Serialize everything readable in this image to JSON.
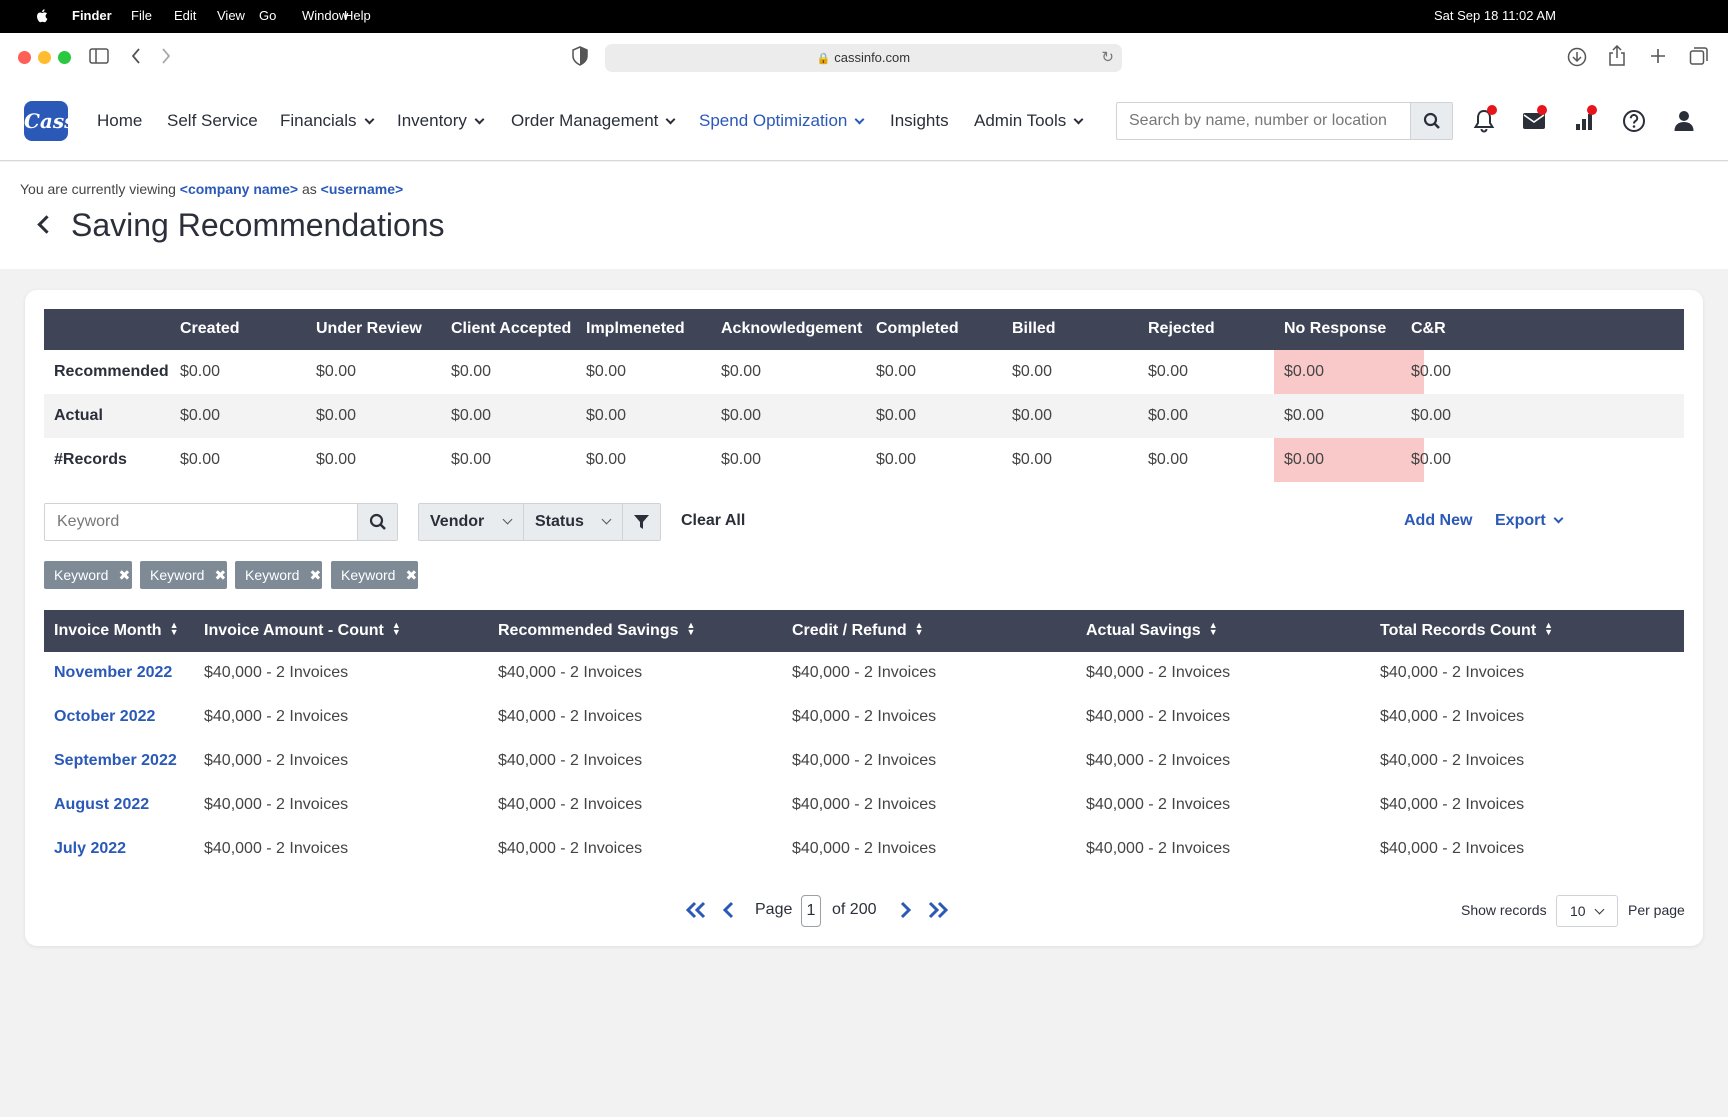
{
  "os_menu": {
    "app": "Finder",
    "items": [
      "File",
      "Edit",
      "View",
      "Go",
      "Window",
      "Help"
    ],
    "datetime": "Sat Sep 18  11:02 AM"
  },
  "browser": {
    "url": "cassinfo.com"
  },
  "nav": {
    "logo": "Cass",
    "items": [
      {
        "label": "Home",
        "dropdown": false
      },
      {
        "label": "Self Service",
        "dropdown": false
      },
      {
        "label": "Financials",
        "dropdown": true
      },
      {
        "label": "Inventory",
        "dropdown": true
      },
      {
        "label": "Order Management",
        "dropdown": true
      },
      {
        "label": "Spend Optimization",
        "dropdown": true,
        "active": true
      },
      {
        "label": "Insights",
        "dropdown": false
      },
      {
        "label": "Admin Tools",
        "dropdown": true
      }
    ],
    "search_placeholder": "Search by name, number or location"
  },
  "context": {
    "prefix": "You are currently viewing",
    "company": "<company name>",
    "as": "as",
    "user": "<username>"
  },
  "page_title": "Saving Recommendations",
  "summary": {
    "columns": [
      "Created",
      "Under Review",
      "Client Accepted",
      "Implmeneted",
      "Acknowledgement",
      "Completed",
      "Billed",
      "Rejected",
      "No Response",
      "C&R"
    ],
    "rows": [
      {
        "label": "Recommended",
        "values": [
          "$0.00",
          "$0.00",
          "$0.00",
          "$0.00",
          "$0.00",
          "$0.00",
          "$0.00",
          "$0.00",
          "$0.00",
          "$0.00"
        ]
      },
      {
        "label": "Actual",
        "values": [
          "$0.00",
          "$0.00",
          "$0.00",
          "$0.00",
          "$0.00",
          "$0.00",
          "$0.00",
          "$0.00",
          "$0.00",
          "$0.00"
        ]
      },
      {
        "label": "#Records",
        "values": [
          "$0.00",
          "$0.00",
          "$0.00",
          "$0.00",
          "$0.00",
          "$0.00",
          "$0.00",
          "$0.00",
          "$0.00",
          "$0.00"
        ]
      }
    ],
    "highlight_color": "#f9c9c9"
  },
  "filters": {
    "keyword_placeholder": "Keyword",
    "vendor": "Vendor",
    "status": "Status",
    "clear_all": "Clear All",
    "add_new": "Add New",
    "export": "Export",
    "chips": [
      "Keyword",
      "Keyword",
      "Keyword",
      "Keyword"
    ]
  },
  "table": {
    "columns": [
      "Invoice Month",
      "Invoice Amount - Count",
      "Recommended Savings",
      "Credit / Refund",
      "Actual Savings",
      "Total Records Count"
    ],
    "rows": [
      {
        "month": "November 2022",
        "cells": [
          "$40,000 - 2 Invoices",
          "$40,000 - 2 Invoices",
          "$40,000 - 2 Invoices",
          "$40,000 - 2 Invoices",
          "$40,000 - 2 Invoices"
        ]
      },
      {
        "month": "October 2022",
        "cells": [
          "$40,000 - 2 Invoices",
          "$40,000 - 2 Invoices",
          "$40,000 - 2 Invoices",
          "$40,000 - 2 Invoices",
          "$40,000 - 2 Invoices"
        ]
      },
      {
        "month": "September 2022",
        "cells": [
          "$40,000 - 2 Invoices",
          "$40,000 - 2 Invoices",
          "$40,000 - 2 Invoices",
          "$40,000 - 2 Invoices",
          "$40,000 - 2 Invoices"
        ]
      },
      {
        "month": "August 2022",
        "cells": [
          "$40,000 - 2 Invoices",
          "$40,000 - 2 Invoices",
          "$40,000 - 2 Invoices",
          "$40,000 - 2 Invoices",
          "$40,000 - 2 Invoices"
        ]
      },
      {
        "month": "July 2022",
        "cells": [
          "$40,000 - 2 Invoices",
          "$40,000 - 2 Invoices",
          "$40,000 - 2 Invoices",
          "$40,000 - 2 Invoices",
          "$40,000 - 2 Invoices"
        ]
      }
    ]
  },
  "pagination": {
    "page_label": "Page",
    "current_page": "1",
    "of_label": "of 200",
    "show_records": "Show records",
    "per_page_value": "10",
    "per_page_label": "Per page"
  },
  "colors": {
    "accent": "#2a59b8",
    "header_dark": "#3f4557",
    "notification_dot": "#e8141b"
  }
}
